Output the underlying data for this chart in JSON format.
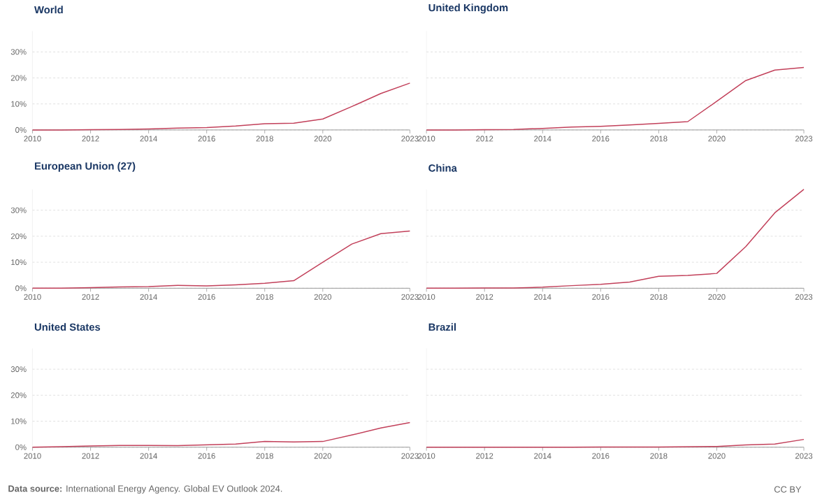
{
  "chart_data": [
    {
      "type": "line",
      "title": "World",
      "x": [
        2010,
        2011,
        2012,
        2013,
        2014,
        2015,
        2016,
        2017,
        2018,
        2019,
        2020,
        2021,
        2022,
        2023
      ],
      "series": [
        {
          "color": "#c2405a",
          "values": [
            0,
            0,
            0.1,
            0.2,
            0.4,
            0.7,
            0.9,
            1.5,
            2.4,
            2.6,
            4.2,
            9,
            14,
            18
          ]
        }
      ],
      "xlim": [
        2010,
        2023
      ],
      "ylim": [
        0,
        38
      ],
      "xticks": [
        2010,
        2012,
        2014,
        2016,
        2018,
        2020,
        2023
      ],
      "yticks": [
        {
          "value": 0,
          "label": "0%"
        },
        {
          "value": 10,
          "label": "10%"
        },
        {
          "value": 20,
          "label": "20%"
        },
        {
          "value": 30,
          "label": "30%"
        }
      ],
      "grid": "y"
    },
    {
      "type": "line",
      "title": "United Kingdom",
      "x": [
        2010,
        2011,
        2012,
        2013,
        2014,
        2015,
        2016,
        2017,
        2018,
        2019,
        2020,
        2021,
        2022,
        2023
      ],
      "series": [
        {
          "color": "#c2405a",
          "values": [
            0,
            0,
            0.1,
            0.2,
            0.6,
            1.1,
            1.4,
            1.9,
            2.5,
            3.2,
            11,
            19,
            23,
            24
          ]
        }
      ],
      "xlim": [
        2010,
        2023
      ],
      "ylim": [
        0,
        38
      ],
      "xticks": [
        2010,
        2012,
        2014,
        2016,
        2018,
        2020,
        2023
      ],
      "yticks": [
        {
          "value": 0,
          "label": null
        },
        {
          "value": 10,
          "label": null
        },
        {
          "value": 20,
          "label": null
        },
        {
          "value": 30,
          "label": null
        }
      ],
      "grid": "y",
      "tick_labels": "x"
    },
    {
      "type": "line",
      "title": "European Union (27)",
      "x": [
        2010,
        2011,
        2012,
        2013,
        2014,
        2015,
        2016,
        2017,
        2018,
        2019,
        2020,
        2021,
        2022,
        2023
      ],
      "series": [
        {
          "color": "#c2405a",
          "values": [
            0,
            0,
            0.2,
            0.5,
            0.6,
            1.1,
            0.9,
            1.3,
            1.9,
            2.9,
            10,
            17,
            21,
            22
          ]
        }
      ],
      "xlim": [
        2010,
        2023
      ],
      "ylim": [
        0,
        38
      ],
      "xticks": [
        2010,
        2012,
        2014,
        2016,
        2018,
        2020,
        2023
      ],
      "yticks": [
        {
          "value": 0,
          "label": "0%"
        },
        {
          "value": 10,
          "label": "10%"
        },
        {
          "value": 20,
          "label": "20%"
        },
        {
          "value": 30,
          "label": "30%"
        }
      ],
      "grid": "y"
    },
    {
      "type": "line",
      "title": "China",
      "x": [
        2010,
        2011,
        2012,
        2013,
        2014,
        2015,
        2016,
        2017,
        2018,
        2019,
        2020,
        2021,
        2022,
        2023
      ],
      "series": [
        {
          "color": "#c2405a",
          "values": [
            0,
            0,
            0.1,
            0.1,
            0.4,
            1,
            1.5,
            2.4,
            4.6,
            4.9,
            5.7,
            16,
            29,
            38
          ]
        }
      ],
      "xlim": [
        2010,
        2023
      ],
      "ylim": [
        0,
        38
      ],
      "xticks": [
        2010,
        2012,
        2014,
        2016,
        2018,
        2020,
        2023
      ],
      "yticks": [
        {
          "value": 0,
          "label": null
        },
        {
          "value": 10,
          "label": null
        },
        {
          "value": 20,
          "label": null
        },
        {
          "value": 30,
          "label": null
        }
      ],
      "grid": "y",
      "tick_labels": "x"
    },
    {
      "type": "line",
      "title": "United States",
      "x": [
        2010,
        2011,
        2012,
        2013,
        2014,
        2015,
        2016,
        2017,
        2018,
        2019,
        2020,
        2021,
        2022,
        2023
      ],
      "series": [
        {
          "color": "#c2405a",
          "values": [
            0,
            0.2,
            0.5,
            0.7,
            0.7,
            0.6,
            0.9,
            1.2,
            2.2,
            2,
            2.2,
            4.7,
            7.4,
            9.5
          ]
        }
      ],
      "xlim": [
        2010,
        2023
      ],
      "ylim": [
        0,
        38
      ],
      "xticks": [
        2010,
        2012,
        2014,
        2016,
        2018,
        2020,
        2023
      ],
      "yticks": [
        {
          "value": 0,
          "label": "0%"
        },
        {
          "value": 10,
          "label": "10%"
        },
        {
          "value": 20,
          "label": "20%"
        },
        {
          "value": 30,
          "label": "30%"
        }
      ],
      "grid": "y",
      "annotations": [
        "**Data source:** International Energy Agency. Global EV Outlook 2024."
      ]
    },
    {
      "type": "line",
      "title": "Brazil",
      "x": [
        2010,
        2011,
        2012,
        2013,
        2014,
        2015,
        2016,
        2017,
        2018,
        2019,
        2020,
        2021,
        2022,
        2023
      ],
      "series": [
        {
          "color": "#c2405a",
          "values": [
            0,
            0,
            0,
            0,
            0,
            0,
            0.1,
            0.1,
            0.1,
            0.2,
            0.3,
            0.9,
            1.2,
            3
          ]
        }
      ],
      "xlim": [
        2010,
        2023
      ],
      "ylim": [
        0,
        38
      ],
      "xticks": [
        2010,
        2012,
        2014,
        2016,
        2018,
        2020,
        2023
      ],
      "yticks": [
        {
          "value": 0,
          "label": null
        },
        {
          "value": 10,
          "label": null
        },
        {
          "value": 20,
          "label": null
        },
        {
          "value": 30,
          "label": null
        }
      ],
      "grid": "y",
      "tick_labels": "x",
      "annotations": [
        "CC BY"
      ]
    }
  ]
}
